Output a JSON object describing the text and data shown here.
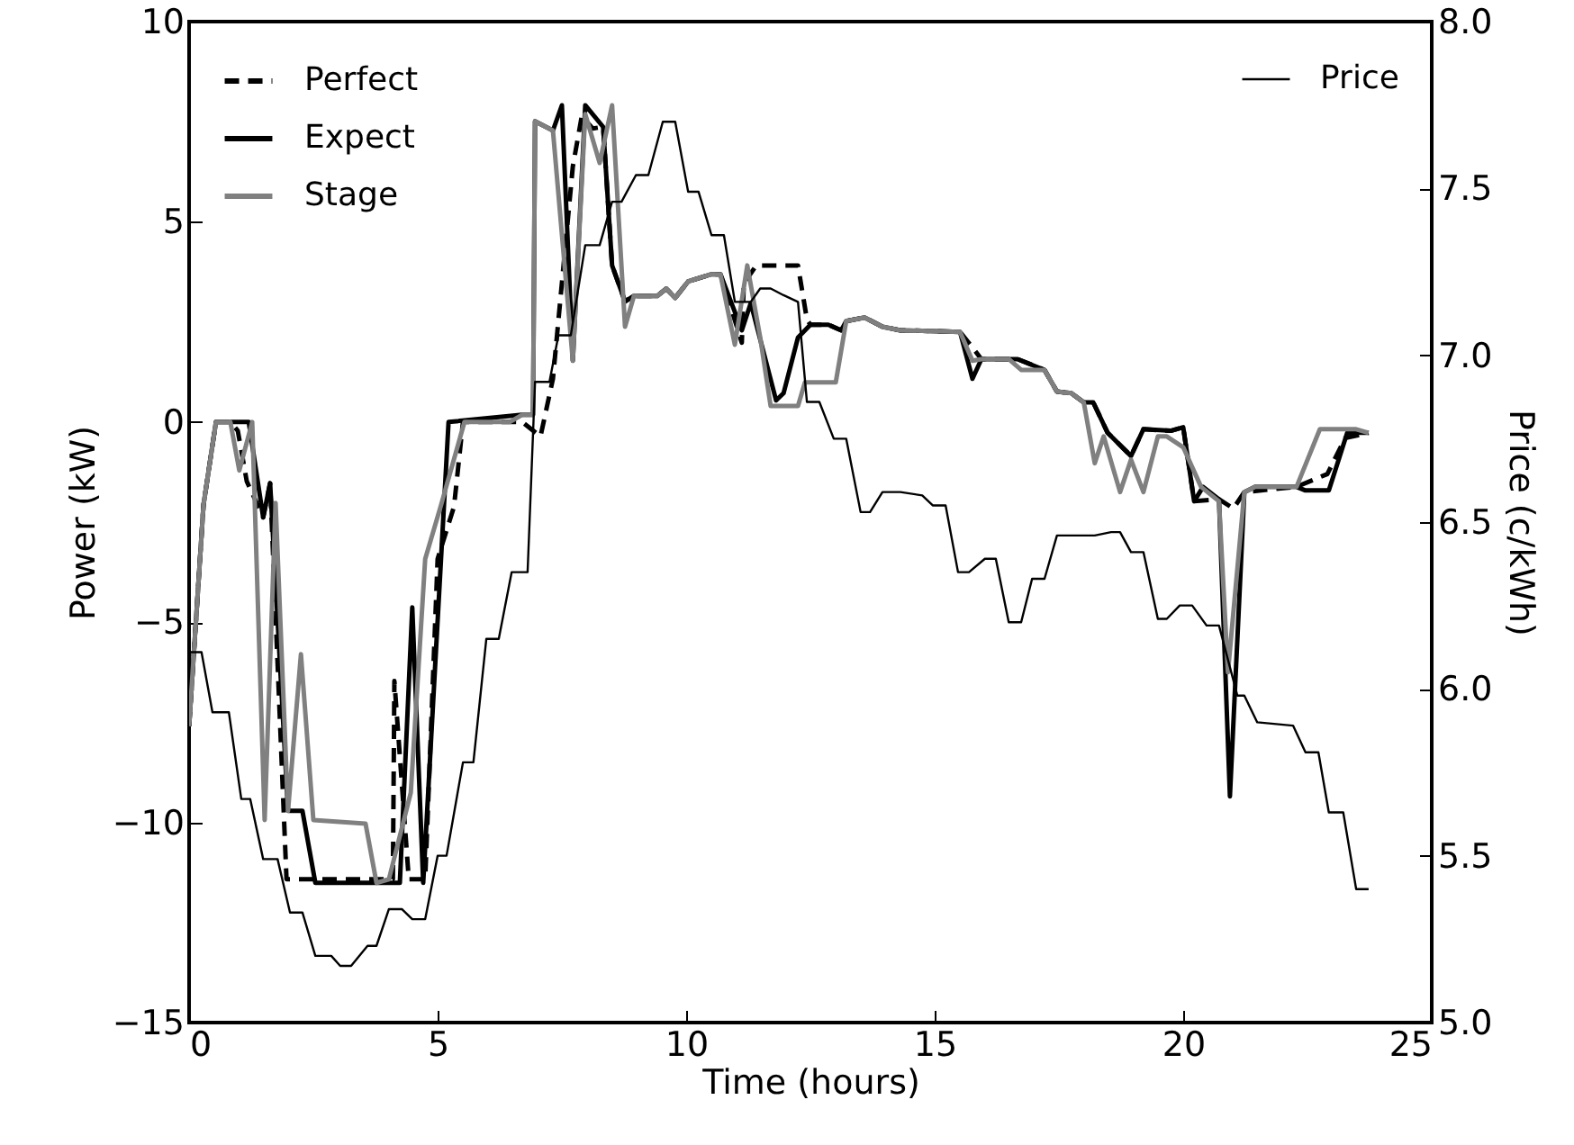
{
  "chart_data": {
    "type": "line",
    "xlabel": "Time (hours)",
    "ylabel": "Power (kW)",
    "y2label": "Price (c/kWh)",
    "xlim": [
      0,
      25
    ],
    "xticks": [
      0,
      5,
      10,
      15,
      20,
      25
    ],
    "ylim": [
      -15,
      10
    ],
    "yticks": [
      {
        "value": -15,
        "label": "−15"
      },
      {
        "value": -10,
        "label": "−10"
      },
      {
        "value": -5,
        "label": "−5"
      },
      {
        "value": 0,
        "label": "0"
      },
      {
        "value": 5,
        "label": "5"
      },
      {
        "value": 10,
        "label": "10"
      }
    ],
    "y2lim": [
      5,
      8
    ],
    "y2ticks": [
      {
        "value": 5,
        "label": "5.0"
      },
      {
        "value": 5.5,
        "label": "5.5"
      },
      {
        "value": 6,
        "label": "6.0"
      },
      {
        "value": 6.5,
        "label": "6.5"
      },
      {
        "value": 7,
        "label": "7.0"
      },
      {
        "value": 7.5,
        "label": "7.5"
      },
      {
        "value": 8,
        "label": "8.0"
      }
    ],
    "grid": false,
    "legend": "top left",
    "marker": "none",
    "series": [
      {
        "name": "Perfect",
        "color": "#000000",
        "line_style": "dashed",
        "x": [
          0,
          0.29,
          0.54,
          0.83,
          0.98,
          1.16,
          1.49,
          1.63,
          1.96,
          4.1,
          4.13,
          4.42,
          4.75,
          5.0,
          5.33,
          5.51,
          6.7,
          7.07,
          7.32,
          7.72,
          7.9,
          8.12,
          8.33,
          8.51,
          8.77,
          8.95,
          9.42,
          9.6,
          9.78,
          10.04,
          10.51,
          10.69,
          11.12,
          11.16,
          11.41,
          12.25,
          12.43,
          12.5,
          12.86,
          13.12,
          13.22,
          13.59,
          13.95,
          14.31,
          15.51,
          15.83,
          15.94,
          16.67,
          17.21,
          17.46,
          17.75,
          18.0,
          18.19,
          18.48,
          18.95,
          19.2,
          19.75,
          20.0,
          20.22,
          20.72,
          21.01,
          21.23,
          22.28,
          22.9,
          23.26,
          23.73
        ],
        "values": [
          -7.6,
          -2.07,
          0,
          0,
          -0.22,
          -1.48,
          -2.38,
          -1.53,
          -11.42,
          -11.42,
          -6.47,
          -11.42,
          -11.42,
          -3.42,
          -2.11,
          0,
          0,
          -0.36,
          1.08,
          6.38,
          7.64,
          7.33,
          7.37,
          3.91,
          3.01,
          3.15,
          3.15,
          3.33,
          3.1,
          3.51,
          3.69,
          3.69,
          1.98,
          3.46,
          3.91,
          3.91,
          2.56,
          2.43,
          2.43,
          2.29,
          2.52,
          2.61,
          2.38,
          2.29,
          2.25,
          1.75,
          1.57,
          1.57,
          1.3,
          0.76,
          0.72,
          0.49,
          0.49,
          -0.27,
          -0.85,
          -0.18,
          -0.22,
          -0.13,
          -1.98,
          -1.93,
          -2.16,
          -1.75,
          -1.62,
          -1.3,
          -0.4,
          -0.27
        ]
      },
      {
        "name": "Expect",
        "color": "#000000",
        "line_style": "solid",
        "x": [
          0,
          0.29,
          0.54,
          1.2,
          1.49,
          1.63,
          1.99,
          2.28,
          2.54,
          4.24,
          4.49,
          4.71,
          5.22,
          6.7,
          6.92,
          6.96,
          7.32,
          7.5,
          7.72,
          7.97,
          8.33,
          8.51,
          8.77,
          8.95,
          9.42,
          9.6,
          9.78,
          10.04,
          10.51,
          10.69,
          11.12,
          11.3,
          11.81,
          11.96,
          12.25,
          12.5,
          12.86,
          13.12,
          13.22,
          13.59,
          13.95,
          14.31,
          15.51,
          15.76,
          15.94,
          16.67,
          17.21,
          17.46,
          17.75,
          18.0,
          18.19,
          18.48,
          18.95,
          19.2,
          19.75,
          20.0,
          20.22,
          20.4,
          20.72,
          20.94,
          21.23,
          21.45,
          22.28,
          22.46,
          22.93,
          23.3,
          23.73
        ],
        "values": [
          -7.6,
          -2.07,
          0,
          0,
          -2.38,
          -1.53,
          -9.71,
          -9.71,
          -11.51,
          -11.51,
          -4.63,
          -11.51,
          0,
          0.18,
          0.18,
          7.51,
          7.28,
          7.91,
          1.53,
          7.91,
          7.37,
          3.91,
          3.01,
          3.15,
          3.15,
          3.33,
          3.1,
          3.51,
          3.69,
          3.69,
          2.29,
          2.97,
          0.54,
          0.72,
          2.11,
          2.43,
          2.43,
          2.29,
          2.52,
          2.61,
          2.38,
          2.29,
          2.25,
          1.08,
          1.57,
          1.57,
          1.3,
          0.76,
          0.72,
          0.49,
          0.49,
          -0.27,
          -0.85,
          -0.18,
          -0.22,
          -0.13,
          -1.98,
          -1.62,
          -1.93,
          -9.35,
          -1.75,
          -1.62,
          -1.62,
          -1.71,
          -1.71,
          -0.27,
          -0.27
        ]
      },
      {
        "name": "Stage",
        "color": "#808080",
        "line_style": "solid",
        "x": [
          0,
          0.29,
          0.54,
          0.83,
          1.01,
          1.27,
          1.52,
          1.74,
          1.99,
          2.25,
          2.5,
          3.55,
          3.77,
          4.02,
          4.46,
          4.75,
          5.07,
          5.54,
          6.45,
          6.7,
          6.92,
          6.96,
          7.32,
          7.72,
          7.97,
          8.26,
          8.51,
          8.77,
          8.95,
          9.42,
          9.6,
          9.78,
          10.04,
          10.51,
          10.69,
          10.98,
          11.23,
          11.49,
          11.7,
          12.25,
          12.39,
          13.01,
          13.22,
          13.59,
          13.95,
          14.31,
          15.51,
          15.76,
          15.94,
          16.49,
          16.74,
          17.21,
          17.46,
          17.75,
          18.0,
          18.22,
          18.4,
          18.73,
          18.95,
          19.2,
          19.49,
          19.67,
          20.0,
          20.36,
          20.72,
          20.9,
          21.23,
          21.45,
          22.28,
          22.75,
          23.48,
          23.73
        ],
        "values": [
          -7.6,
          -2.07,
          0,
          0,
          -1.21,
          0,
          -9.94,
          -2.02,
          -9.71,
          -5.8,
          -9.94,
          -10.03,
          -11.51,
          -11.42,
          -9.26,
          -3.42,
          -2.07,
          0,
          0,
          0.18,
          0.18,
          7.51,
          7.28,
          1.53,
          7.69,
          6.47,
          7.91,
          2.38,
          3.15,
          3.15,
          3.33,
          3.1,
          3.51,
          3.69,
          3.69,
          1.93,
          3.91,
          2.11,
          0.4,
          0.4,
          0.99,
          0.99,
          2.52,
          2.61,
          2.38,
          2.29,
          2.25,
          1.53,
          1.57,
          1.57,
          1.3,
          1.3,
          0.76,
          0.72,
          0.49,
          -1.03,
          -0.36,
          -1.75,
          -0.94,
          -1.75,
          -0.36,
          -0.36,
          -0.63,
          -1.62,
          -1.98,
          -6.25,
          -1.75,
          -1.62,
          -1.62,
          -0.18,
          -0.18,
          -0.27
        ]
      },
      {
        "name": "Price",
        "color": "#000000",
        "line_style": "solid",
        "axis": "y2",
        "x": [
          0,
          0.25,
          0.47,
          0.8,
          1.05,
          1.23,
          1.49,
          1.78,
          2.03,
          2.28,
          2.54,
          2.86,
          3.04,
          3.26,
          3.59,
          3.77,
          4.02,
          4.28,
          4.49,
          4.75,
          5.0,
          5.18,
          5.51,
          5.72,
          5.98,
          6.23,
          6.49,
          6.81,
          6.96,
          7.25,
          7.43,
          7.68,
          7.97,
          8.26,
          8.51,
          8.7,
          8.99,
          9.24,
          9.53,
          9.78,
          10.04,
          10.25,
          10.51,
          10.76,
          10.98,
          11.3,
          11.49,
          11.7,
          11.96,
          12.25,
          12.43,
          12.68,
          12.97,
          13.22,
          13.51,
          13.7,
          13.95,
          14.31,
          14.75,
          14.96,
          15.22,
          15.47,
          15.69,
          16.01,
          16.23,
          16.49,
          16.74,
          16.96,
          17.21,
          17.46,
          18.22,
          18.55,
          18.73,
          18.95,
          19.2,
          19.49,
          19.67,
          19.93,
          20.18,
          20.47,
          20.72,
          21.09,
          21.23,
          21.49,
          22.21,
          22.46,
          22.72,
          22.93,
          23.22,
          23.48,
          23.73
        ],
        "values": [
          6.11,
          6.11,
          5.93,
          5.93,
          5.67,
          5.67,
          5.49,
          5.49,
          5.33,
          5.33,
          5.2,
          5.2,
          5.17,
          5.17,
          5.23,
          5.23,
          5.34,
          5.34,
          5.31,
          5.31,
          5.5,
          5.5,
          5.78,
          5.78,
          6.15,
          6.15,
          6.35,
          6.35,
          6.92,
          6.92,
          7.06,
          7.06,
          7.33,
          7.33,
          7.46,
          7.46,
          7.54,
          7.54,
          7.7,
          7.7,
          7.49,
          7.49,
          7.36,
          7.36,
          7.16,
          7.16,
          7.2,
          7.2,
          7.18,
          7.16,
          6.86,
          6.86,
          6.75,
          6.75,
          6.53,
          6.53,
          6.59,
          6.59,
          6.58,
          6.55,
          6.55,
          6.35,
          6.35,
          6.39,
          6.39,
          6.2,
          6.2,
          6.33,
          6.33,
          6.46,
          6.46,
          6.47,
          6.47,
          6.41,
          6.41,
          6.21,
          6.21,
          6.25,
          6.25,
          6.19,
          6.19,
          5.98,
          5.98,
          5.9,
          5.89,
          5.81,
          5.81,
          5.63,
          5.63,
          5.4,
          5.4
        ]
      }
    ]
  }
}
